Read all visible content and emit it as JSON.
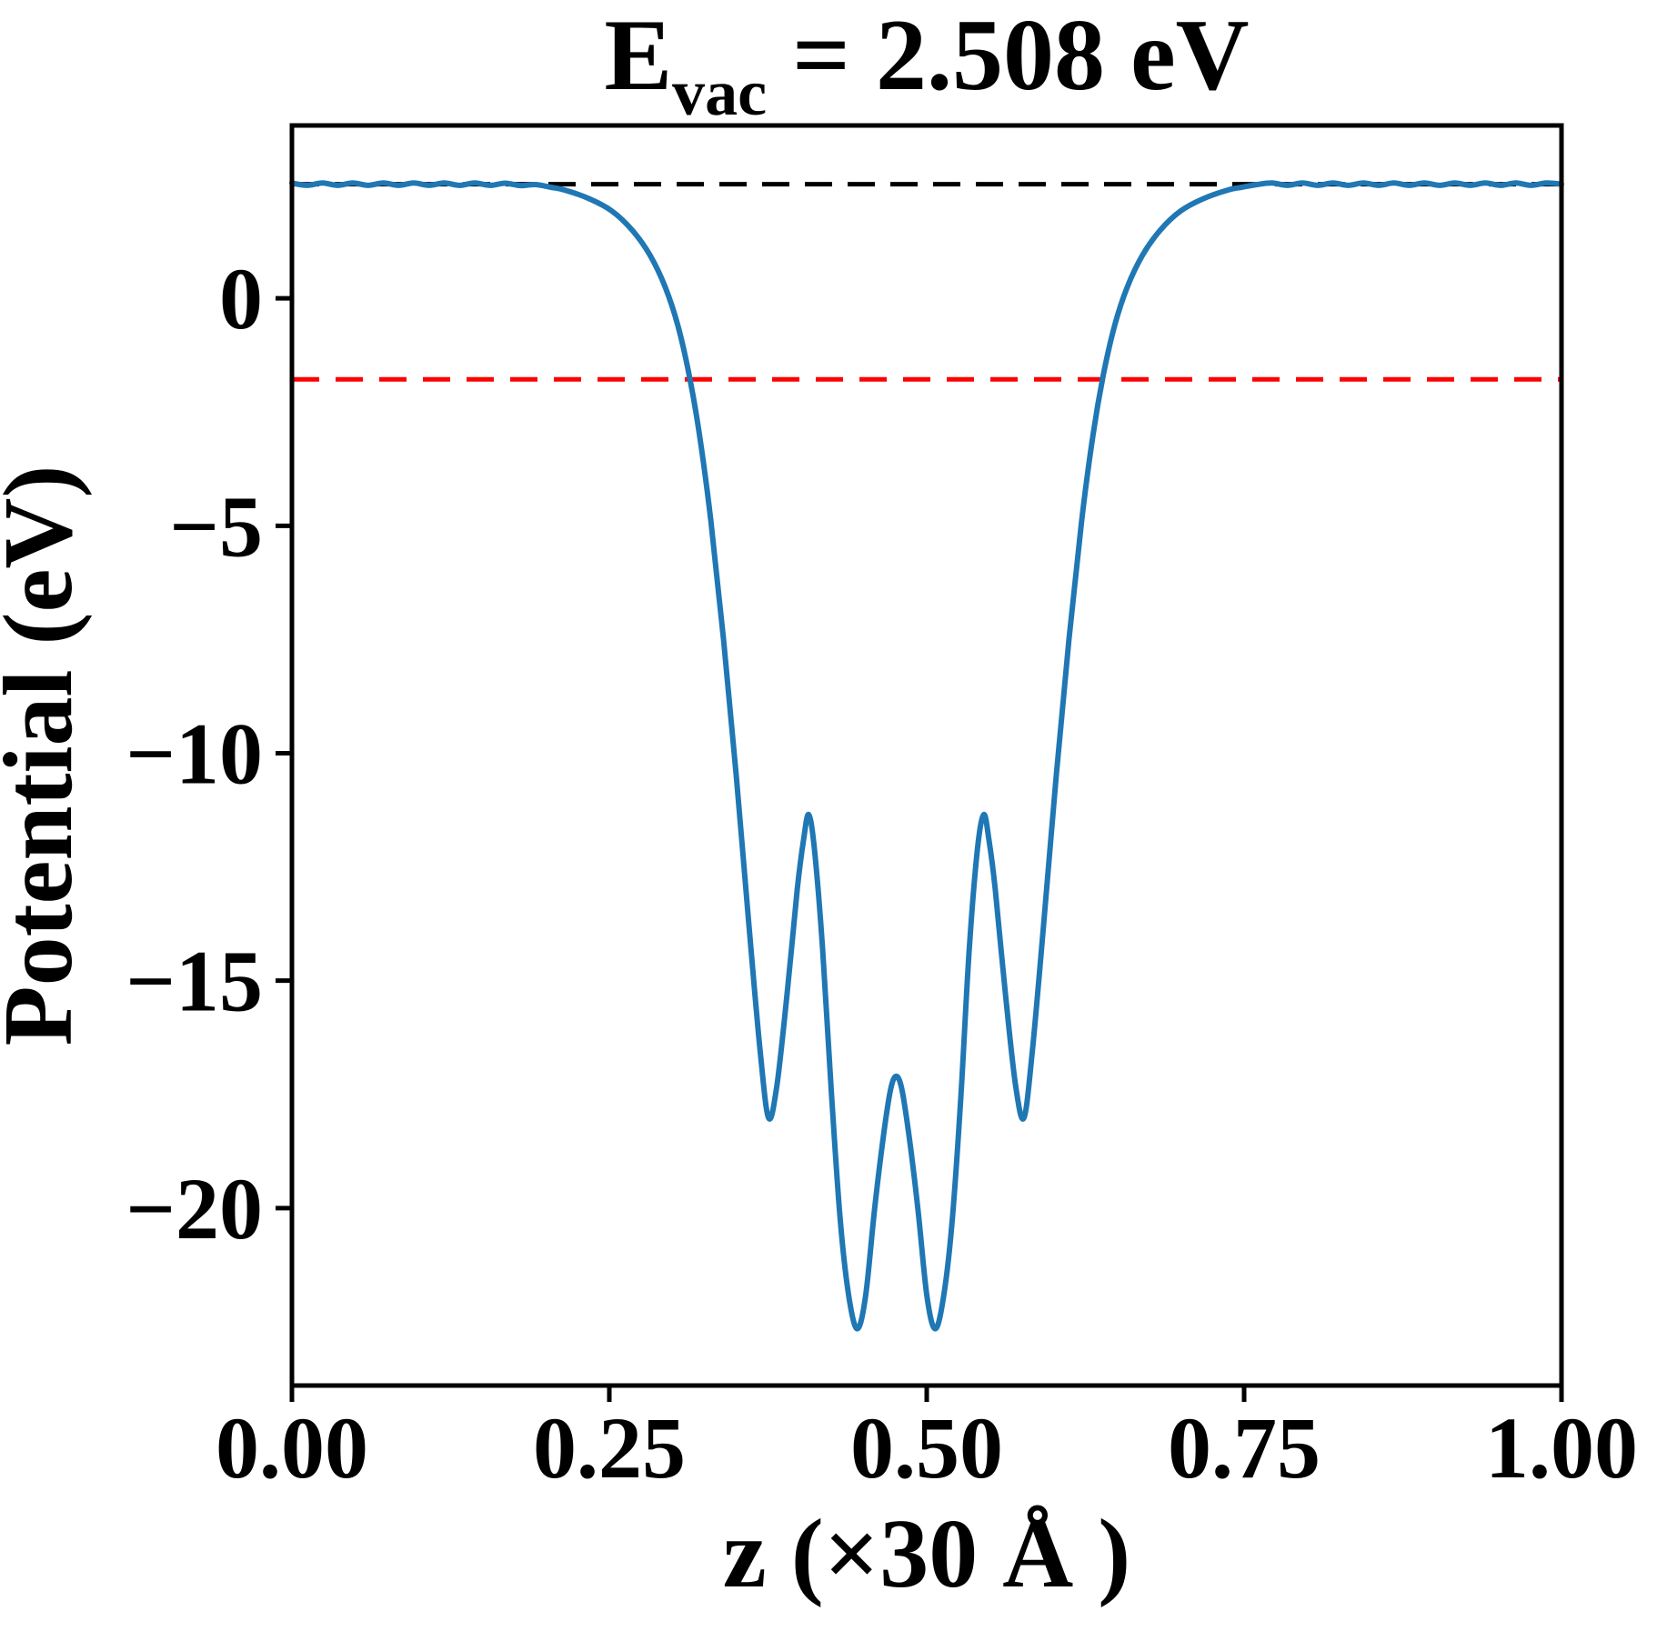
{
  "title": {
    "base": "E",
    "subscript": "vac",
    "rest": " = 2.508 eV"
  },
  "chart_data": {
    "type": "line",
    "title": "E_vac = 2.508 eV",
    "xlabel": "z (×30 Å )",
    "ylabel": "Potential (eV)",
    "xlim": [
      0.0,
      1.0
    ],
    "ylim": [
      -23.9,
      3.8
    ],
    "grid": false,
    "legend": null,
    "xticks": {
      "values": [
        0.0,
        0.25,
        0.5,
        0.75,
        1.0
      ],
      "labels": [
        "0.00",
        "0.25",
        "0.50",
        "0.75",
        "1.00"
      ]
    },
    "yticks": {
      "values": [
        0,
        -5,
        -10,
        -15,
        -20
      ],
      "labels": [
        "0",
        "−5",
        "−10",
        "−15",
        "−20"
      ]
    },
    "reference_lines": [
      {
        "name": "vacuum-level-line",
        "value": 2.508,
        "color": "#000000",
        "style": "dashed",
        "dash": "30 17"
      },
      {
        "name": "fermi-level-line",
        "value": -1.78,
        "color": "#ff0000",
        "style": "dashed",
        "dash": "30 18"
      }
    ],
    "annotations": {
      "vacuum_energy_eV": 2.508
    },
    "series": [
      {
        "name": "planar-averaged-potential",
        "color": "#1f77b4",
        "x": [
          0.0,
          0.012,
          0.024,
          0.036,
          0.048,
          0.06,
          0.072,
          0.084,
          0.096,
          0.108,
          0.12,
          0.132,
          0.144,
          0.156,
          0.168,
          0.18,
          0.192,
          0.204,
          0.215,
          0.235,
          0.252,
          0.268,
          0.282,
          0.294,
          0.304,
          0.313,
          0.321,
          0.33,
          0.34,
          0.35,
          0.36,
          0.369,
          0.3755,
          0.382,
          0.39,
          0.398,
          0.403,
          0.407,
          0.4115,
          0.418,
          0.425,
          0.432,
          0.439,
          0.4455,
          0.452,
          0.459,
          0.466,
          0.4715,
          0.476,
          0.4805,
          0.486,
          0.493,
          0.5,
          0.5065,
          0.513,
          0.52,
          0.527,
          0.5335,
          0.54,
          0.545,
          0.549,
          0.554,
          0.562,
          0.57,
          0.5765,
          0.583,
          0.592,
          0.602,
          0.612,
          0.622,
          0.631,
          0.639,
          0.648,
          0.658,
          0.67,
          0.684,
          0.7,
          0.717,
          0.737,
          0.748,
          0.76,
          0.772,
          0.784,
          0.796,
          0.808,
          0.82,
          0.832,
          0.844,
          0.856,
          0.868,
          0.88,
          0.892,
          0.904,
          0.916,
          0.928,
          0.94,
          0.952,
          0.964,
          0.976,
          0.988,
          1.0
        ],
        "y": [
          2.534,
          2.482,
          2.534,
          2.482,
          2.534,
          2.482,
          2.534,
          2.482,
          2.534,
          2.482,
          2.534,
          2.482,
          2.534,
          2.482,
          2.53,
          2.478,
          2.5,
          2.44,
          2.38,
          2.18,
          1.92,
          1.5,
          0.95,
          0.25,
          -0.6,
          -1.7,
          -3.0,
          -4.9,
          -7.5,
          -10.5,
          -13.8,
          -16.6,
          -18.02,
          -17.3,
          -15.3,
          -13.0,
          -11.9,
          -11.35,
          -12.1,
          -14.3,
          -17.5,
          -20.3,
          -22.0,
          -22.65,
          -21.9,
          -20.0,
          -18.4,
          -17.4,
          -17.1,
          -17.4,
          -18.4,
          -20.0,
          -21.9,
          -22.65,
          -22.0,
          -20.3,
          -17.5,
          -14.3,
          -12.1,
          -11.35,
          -11.9,
          -13.0,
          -15.3,
          -17.3,
          -18.02,
          -16.6,
          -13.8,
          -10.5,
          -7.5,
          -4.9,
          -3.0,
          -1.7,
          -0.6,
          0.25,
          0.95,
          1.5,
          1.92,
          2.18,
          2.38,
          2.44,
          2.5,
          2.534,
          2.482,
          2.534,
          2.482,
          2.534,
          2.482,
          2.534,
          2.482,
          2.534,
          2.482,
          2.534,
          2.482,
          2.534,
          2.482,
          2.534,
          2.482,
          2.534,
          2.482,
          2.534,
          2.51
        ]
      }
    ]
  },
  "colors": {
    "curve": "#1f77b4",
    "vacuum_level": "#000000",
    "fermi_level": "#ff0000",
    "frame": "#000000",
    "background": "#ffffff"
  }
}
